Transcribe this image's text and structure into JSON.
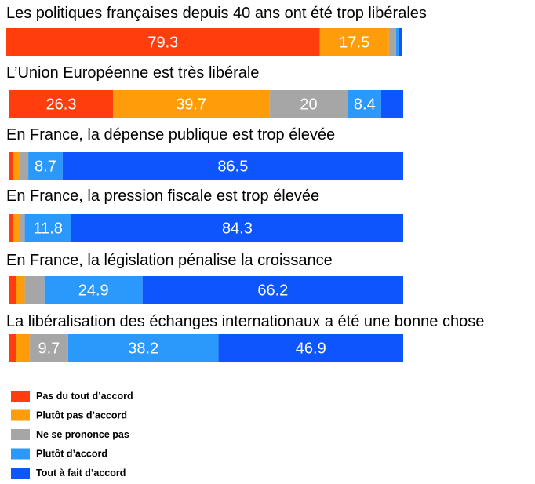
{
  "chart_data": {
    "type": "bar",
    "orientation": "horizontal",
    "stacked": true,
    "grid": false,
    "legend_position": "bottom-left",
    "series": [
      {
        "name": "Pas du tout d’accord",
        "color": "#ff3d0d"
      },
      {
        "name": "Plutôt pas d’accord",
        "color": "#ff9c09"
      },
      {
        "name": "Ne se prononce pas",
        "color": "#a6a6a6"
      },
      {
        "name": "Plutôt d’accord",
        "color": "#2b99fb"
      },
      {
        "name": "Tout à fait d’accord",
        "color": "#0d55fd"
      }
    ],
    "rows": [
      {
        "label": "Les politiques françaises depuis 40 ans ont été trop libérales",
        "values": [
          79.3,
          17.5,
          1.8,
          0.6,
          0.8
        ]
      },
      {
        "label": "L’Union Européenne est très libérale",
        "values": [
          26.3,
          39.7,
          20,
          8.4,
          5.6
        ]
      },
      {
        "label": "En France, la dépense publique est trop élevée",
        "values": [
          1.0,
          1.5,
          2.3,
          8.7,
          86.5
        ]
      },
      {
        "label": "En France, la pression fiscale est trop élevée",
        "values": [
          0.9,
          1.5,
          1.5,
          11.8,
          84.3
        ]
      },
      {
        "label": "En France, la législation pénalise la croissance",
        "values": [
          1.6,
          2.3,
          5.0,
          24.9,
          66.2
        ]
      },
      {
        "label": "La libéralisation des échanges internationaux a été une bonne chose",
        "values": [
          1.6,
          3.6,
          9.7,
          38.2,
          46.9
        ]
      }
    ],
    "data_labels": [
      [
        "79.3",
        "17.5",
        "",
        "",
        ""
      ],
      [
        "26.3",
        "39.7",
        "20",
        "8.4",
        ""
      ],
      [
        "",
        "",
        "",
        "8.7",
        "86.5"
      ],
      [
        "",
        "",
        "",
        "11.8",
        "84.3"
      ],
      [
        "",
        "",
        "",
        "24.9",
        "66.2"
      ],
      [
        "",
        "",
        "9.7",
        "38.2",
        "46.9"
      ]
    ]
  }
}
